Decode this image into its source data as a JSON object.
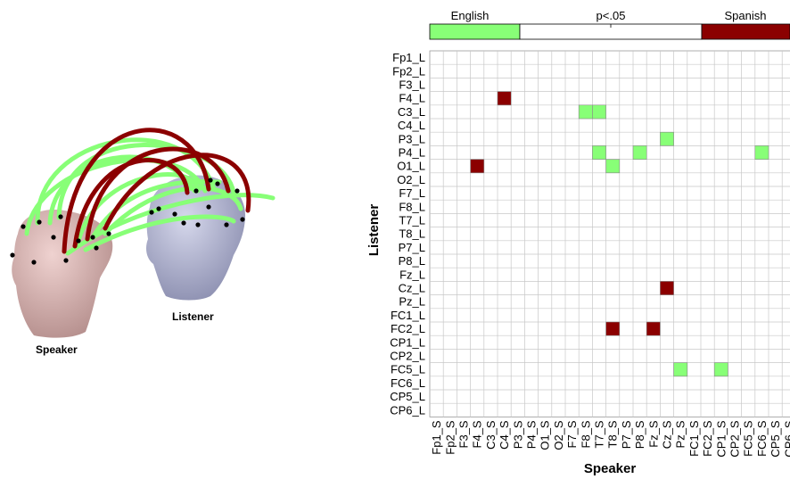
{
  "illustration": {
    "speaker_label": "Speaker",
    "listener_label": "Listener",
    "colors": {
      "english_link": "#88ff77",
      "spanish_link": "#8b0000",
      "speaker_head": "#d8b2b0",
      "listener_head": "#b4b6d2",
      "electrode": "#000000"
    },
    "icon": "head-model-icon"
  },
  "colorbar": {
    "left_label": "English",
    "center_label": "p<.05",
    "right_label": "Spanish",
    "colors": {
      "english": "#88ff77",
      "neutral": "#ffffff",
      "spanish": "#8b0000"
    }
  },
  "chart_data": {
    "type": "heatmap",
    "xlabel": "Speaker",
    "ylabel": "Listener",
    "x_categories": [
      "Fp1_S",
      "Fp2_S",
      "F3_S",
      "F4_S",
      "C3_S",
      "C4_S",
      "P3_S",
      "P4_S",
      "O1_S",
      "O2_S",
      "F7_S",
      "F8_S",
      "T7_S",
      "T8_S",
      "P7_S",
      "P8_S",
      "Fz_S",
      "Cz_S",
      "Pz_S",
      "FC1_S",
      "FC2_S",
      "CP1_S",
      "CP2_S",
      "FC5_S",
      "FC6_S",
      "CP5_S",
      "CP6_S"
    ],
    "y_categories": [
      "Fp1_L",
      "Fp2_L",
      "F3_L",
      "F4_L",
      "C3_L",
      "C4_L",
      "P3_L",
      "P4_L",
      "O1_L",
      "O2_L",
      "F7_L",
      "F8_L",
      "T7_L",
      "T8_L",
      "P7_L",
      "P8_L",
      "Fz_L",
      "Cz_L",
      "Pz_L",
      "FC1_L",
      "FC2_L",
      "CP1_L",
      "CP2_L",
      "FC5_L",
      "FC6_L",
      "CP5_L",
      "CP6_L"
    ],
    "cells": [
      {
        "x": "C4_S",
        "y": "F4_L",
        "value": "Spanish"
      },
      {
        "x": "F8_S",
        "y": "C3_L",
        "value": "English"
      },
      {
        "x": "T7_S",
        "y": "C3_L",
        "value": "English"
      },
      {
        "x": "Cz_S",
        "y": "P3_L",
        "value": "English"
      },
      {
        "x": "T7_S",
        "y": "P4_L",
        "value": "English"
      },
      {
        "x": "P8_S",
        "y": "P4_L",
        "value": "English"
      },
      {
        "x": "FC6_S",
        "y": "P4_L",
        "value": "English"
      },
      {
        "x": "F4_S",
        "y": "O1_L",
        "value": "Spanish"
      },
      {
        "x": "T8_S",
        "y": "O1_L",
        "value": "English"
      },
      {
        "x": "Cz_S",
        "y": "Cz_L",
        "value": "Spanish"
      },
      {
        "x": "T8_S",
        "y": "FC2_L",
        "value": "Spanish"
      },
      {
        "x": "Fz_S",
        "y": "FC2_L",
        "value": "Spanish"
      },
      {
        "x": "Pz_S",
        "y": "FC5_L",
        "value": "English"
      },
      {
        "x": "CP1_S",
        "y": "FC5_L",
        "value": "English"
      }
    ],
    "grid": true
  }
}
